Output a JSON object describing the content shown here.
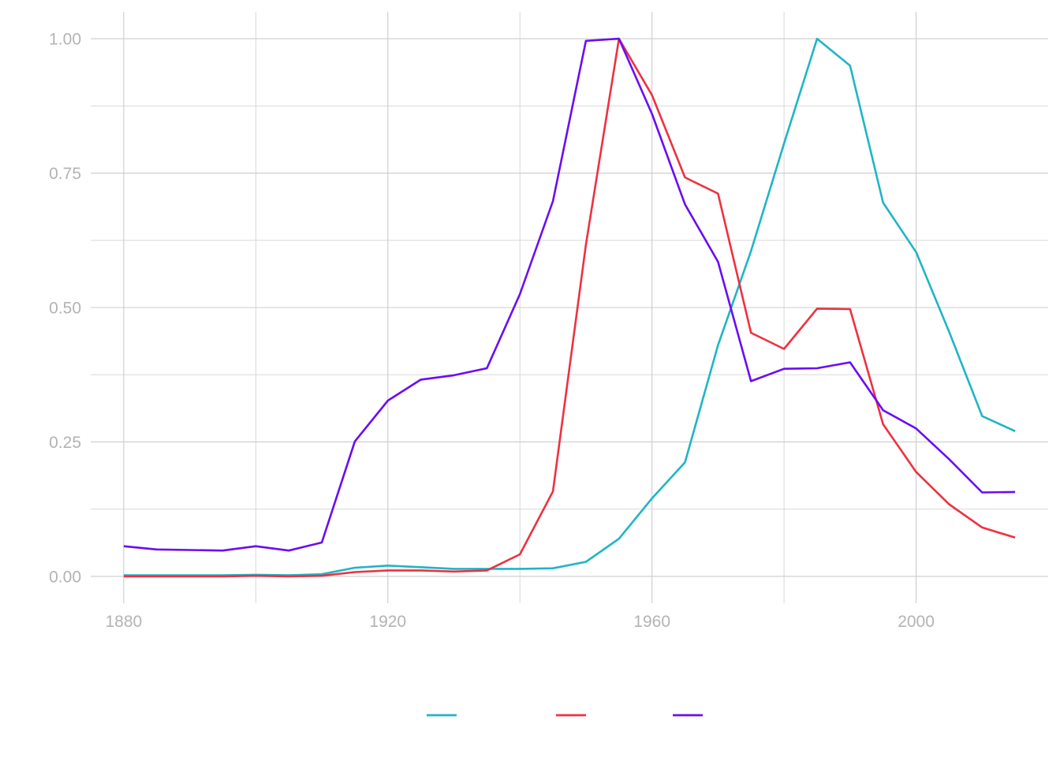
{
  "chart_data": {
    "type": "line",
    "title": "",
    "xlabel": "",
    "ylabel": "",
    "xlim": [
      1875,
      2020
    ],
    "ylim": [
      -0.05,
      1.05
    ],
    "x_ticks": [
      1880,
      1920,
      1960,
      2000
    ],
    "x_tick_labels": [
      "1880",
      "1920",
      "1960",
      "2000"
    ],
    "y_ticks": [
      0,
      0.25,
      0.5,
      0.75,
      1
    ],
    "y_tick_labels": [
      "0.00",
      "0.25",
      "0.50",
      "0.75",
      "1.00"
    ],
    "grid": true,
    "legend_position": "bottom",
    "x": [
      1880,
      1885,
      1890,
      1895,
      1900,
      1905,
      1910,
      1915,
      1920,
      1925,
      1930,
      1935,
      1940,
      1945,
      1950,
      1955,
      1960,
      1965,
      1970,
      1975,
      1980,
      1985,
      1990,
      1995,
      2000,
      2005,
      2010,
      2015
    ],
    "series": [
      {
        "color": "#1fb5c6",
        "values": [
          0.002,
          0.002,
          0.002,
          0.002,
          0.003,
          0.002,
          0.004,
          0.016,
          0.02,
          0.017,
          0.014,
          0.014,
          0.014,
          0.015,
          0.027,
          0.07,
          0.145,
          0.212,
          0.43,
          0.605,
          0.805,
          1.0,
          0.95,
          0.695,
          0.603,
          0.455,
          0.298,
          0.27
        ]
      },
      {
        "color": "#ee3140",
        "values": [
          0.0,
          0.0,
          0.0,
          0.0,
          0.001,
          0.0,
          0.001,
          0.008,
          0.011,
          0.011,
          0.009,
          0.011,
          0.041,
          0.158,
          0.617,
          1.0,
          0.895,
          0.742,
          0.712,
          0.453,
          0.423,
          0.498,
          0.497,
          0.283,
          0.194,
          0.134,
          0.091,
          0.072
        ]
      },
      {
        "color": "#6a0cf5",
        "values": [
          0.056,
          0.05,
          0.049,
          0.048,
          0.056,
          0.048,
          0.063,
          0.251,
          0.327,
          0.366,
          0.374,
          0.387,
          0.525,
          0.698,
          0.996,
          1.0,
          0.86,
          0.692,
          0.585,
          0.363,
          0.386,
          0.387,
          0.398,
          0.309,
          0.275,
          0.218,
          0.156,
          0.157
        ]
      }
    ]
  }
}
